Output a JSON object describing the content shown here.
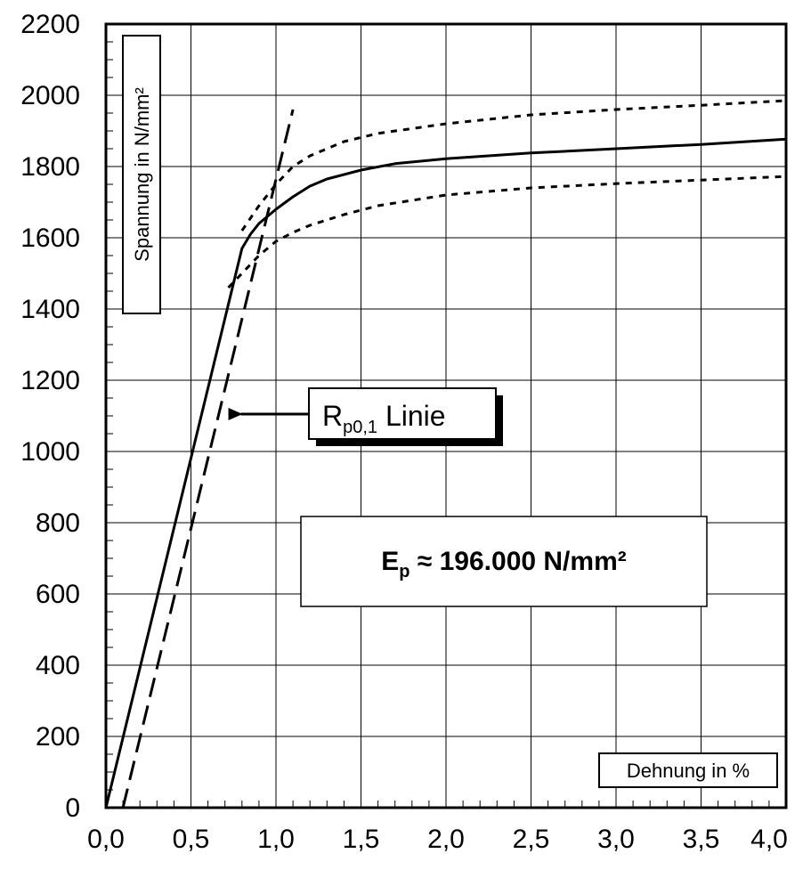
{
  "chart_data": {
    "type": "line",
    "title": "",
    "xlabel": "Dehnung in %",
    "ylabel": "Spannung in N/mm²",
    "xlim": [
      0.0,
      4.0
    ],
    "ylim": [
      0,
      2200
    ],
    "x_ticks": [
      0.0,
      0.5,
      1.0,
      1.5,
      2.0,
      2.5,
      3.0,
      3.5,
      4.0
    ],
    "x_tick_labels": [
      "0,0",
      "0,5",
      "1,0",
      "1,5",
      "2,0",
      "2,5",
      "3,0",
      "3,5",
      "4,0"
    ],
    "y_ticks": [
      0,
      200,
      400,
      600,
      800,
      1000,
      1200,
      1400,
      1600,
      1800,
      2000,
      2200
    ],
    "y_tick_labels": [
      "0",
      "200",
      "400",
      "600",
      "800",
      "1000",
      "1200",
      "1400",
      "1600",
      "1800",
      "2000",
      "2200"
    ],
    "grid": true,
    "series": [
      {
        "style": "solid",
        "x": [
          0.0,
          0.8,
          0.85,
          0.9,
          1.0,
          1.1,
          1.2,
          1.3,
          1.5,
          1.7,
          2.0,
          2.5,
          3.0,
          3.5,
          4.0
        ],
        "y": [
          0,
          1570,
          1610,
          1640,
          1680,
          1715,
          1745,
          1765,
          1790,
          1808,
          1822,
          1838,
          1850,
          1862,
          1877
        ]
      },
      {
        "style": "dotted",
        "x": [
          0.8,
          0.9,
          1.0,
          1.1,
          1.2,
          1.4,
          1.6,
          2.0,
          2.5,
          3.0,
          3.5,
          4.0
        ],
        "y": [
          1620,
          1690,
          1750,
          1800,
          1830,
          1870,
          1893,
          1920,
          1945,
          1960,
          1972,
          1985
        ]
      },
      {
        "style": "dotted",
        "x": [
          0.72,
          0.8,
          0.9,
          1.0,
          1.1,
          1.2,
          1.4,
          1.6,
          2.0,
          2.5,
          3.0,
          3.5,
          4.0
        ],
        "y": [
          1460,
          1500,
          1550,
          1590,
          1615,
          1635,
          1665,
          1690,
          1720,
          1740,
          1752,
          1762,
          1772
        ]
      },
      {
        "style": "dashed",
        "x": [
          0.1,
          1.1
        ],
        "y": [
          0,
          1960
        ]
      }
    ],
    "annotations": {
      "rp_label_main": "R",
      "rp_label_sub": "p0,1",
      "rp_label_rest": " Linie",
      "arrow_target": [
        0.72,
        1105
      ],
      "ep_label_main": "E",
      "ep_label_sub": "p",
      "ep_label_rest": " ≈ 196.000 N/mm²"
    }
  }
}
